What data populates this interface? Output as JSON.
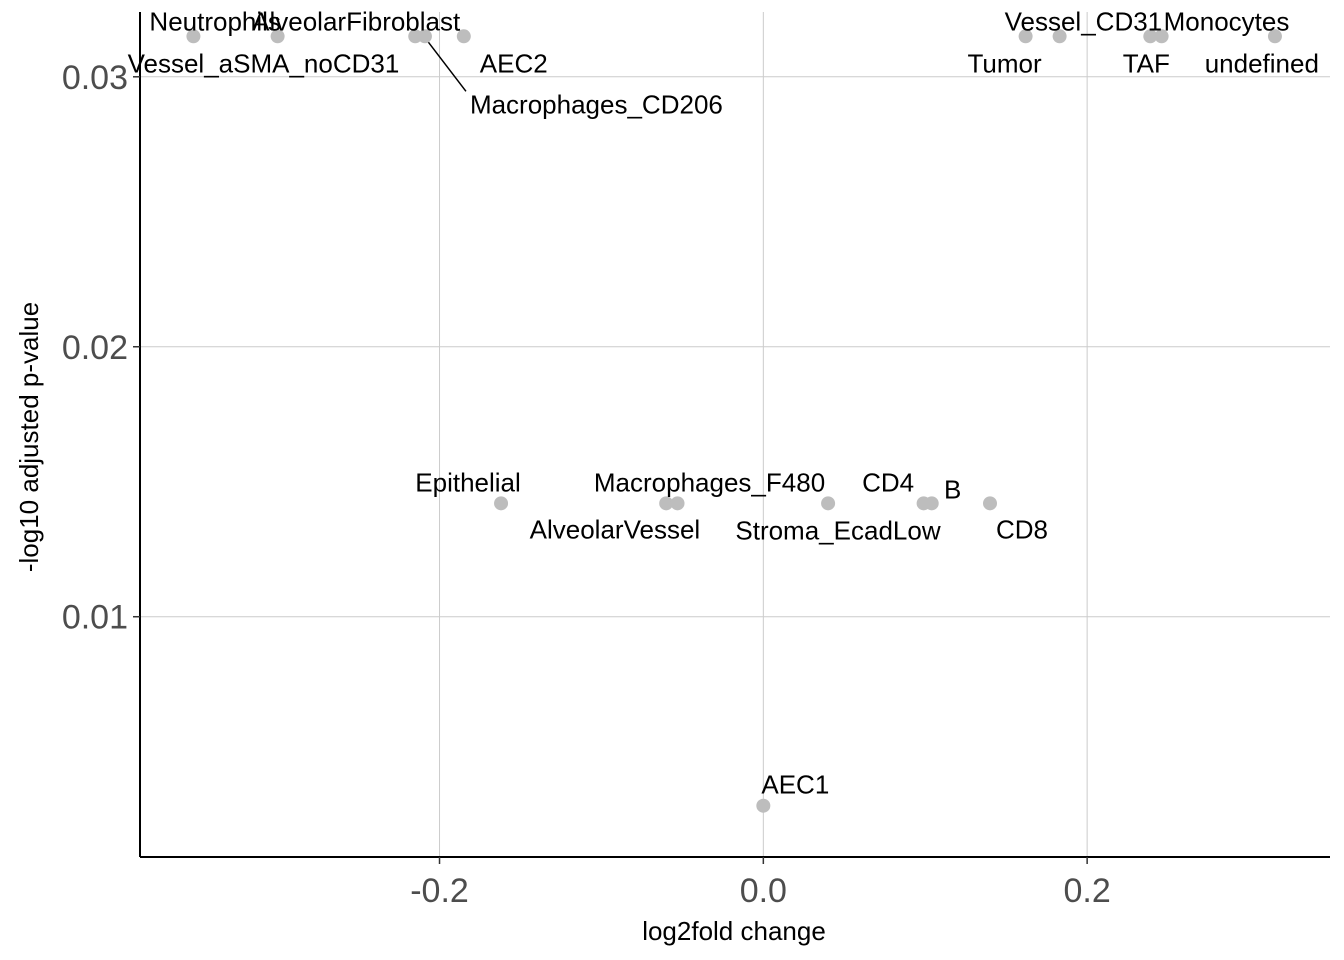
{
  "chart_data": {
    "type": "scatter",
    "title": "",
    "xlabel": "log2fold change",
    "ylabel": "-log10 adjusted p-value",
    "xlim": [
      -0.385,
      0.35
    ],
    "ylim": [
      0.0011,
      0.0324
    ],
    "x_ticks": [
      {
        "value": -0.2,
        "label": "-0.2"
      },
      {
        "value": 0.0,
        "label": "0.0"
      },
      {
        "value": 0.2,
        "label": "0.2"
      }
    ],
    "y_ticks": [
      {
        "value": 0.01,
        "label": "0.01"
      },
      {
        "value": 0.02,
        "label": "0.02"
      },
      {
        "value": 0.03,
        "label": "0.03"
      }
    ],
    "grid": true,
    "legend": "none",
    "point_color": "#bdbdbd",
    "points": [
      {
        "label": "Neutrophils",
        "x": -0.352,
        "y": 0.0315
      },
      {
        "label": "Vessel_aSMA_noCD31",
        "x": -0.3,
        "y": 0.0315
      },
      {
        "label": "AlveolarFibroblast",
        "x": -0.215,
        "y": 0.0315
      },
      {
        "label": "Macrophages_CD206",
        "x": -0.209,
        "y": 0.0315
      },
      {
        "label": "AEC2",
        "x": -0.185,
        "y": 0.0315
      },
      {
        "label": "Tumor",
        "x": 0.162,
        "y": 0.0315
      },
      {
        "label": "Vessel_CD31",
        "x": 0.183,
        "y": 0.0315
      },
      {
        "label": "TAF",
        "x": 0.239,
        "y": 0.0315
      },
      {
        "label": "Monocytes",
        "x": 0.246,
        "y": 0.0315
      },
      {
        "label": "undefined",
        "x": 0.316,
        "y": 0.0315
      },
      {
        "label": "Epithelial",
        "x": -0.162,
        "y": 0.0142
      },
      {
        "label": "AlveolarVessel",
        "x": -0.06,
        "y": 0.0142
      },
      {
        "label": "Macrophages_F480",
        "x": -0.053,
        "y": 0.0142
      },
      {
        "label": "CD4",
        "x": 0.04,
        "y": 0.0142
      },
      {
        "label": "Stroma_EcadLow",
        "x": 0.099,
        "y": 0.0142
      },
      {
        "label": "B",
        "x": 0.104,
        "y": 0.0142
      },
      {
        "label": "CD8",
        "x": 0.14,
        "y": 0.0142
      },
      {
        "label": "AEC1",
        "x": 0.0,
        "y": 0.003
      }
    ]
  }
}
